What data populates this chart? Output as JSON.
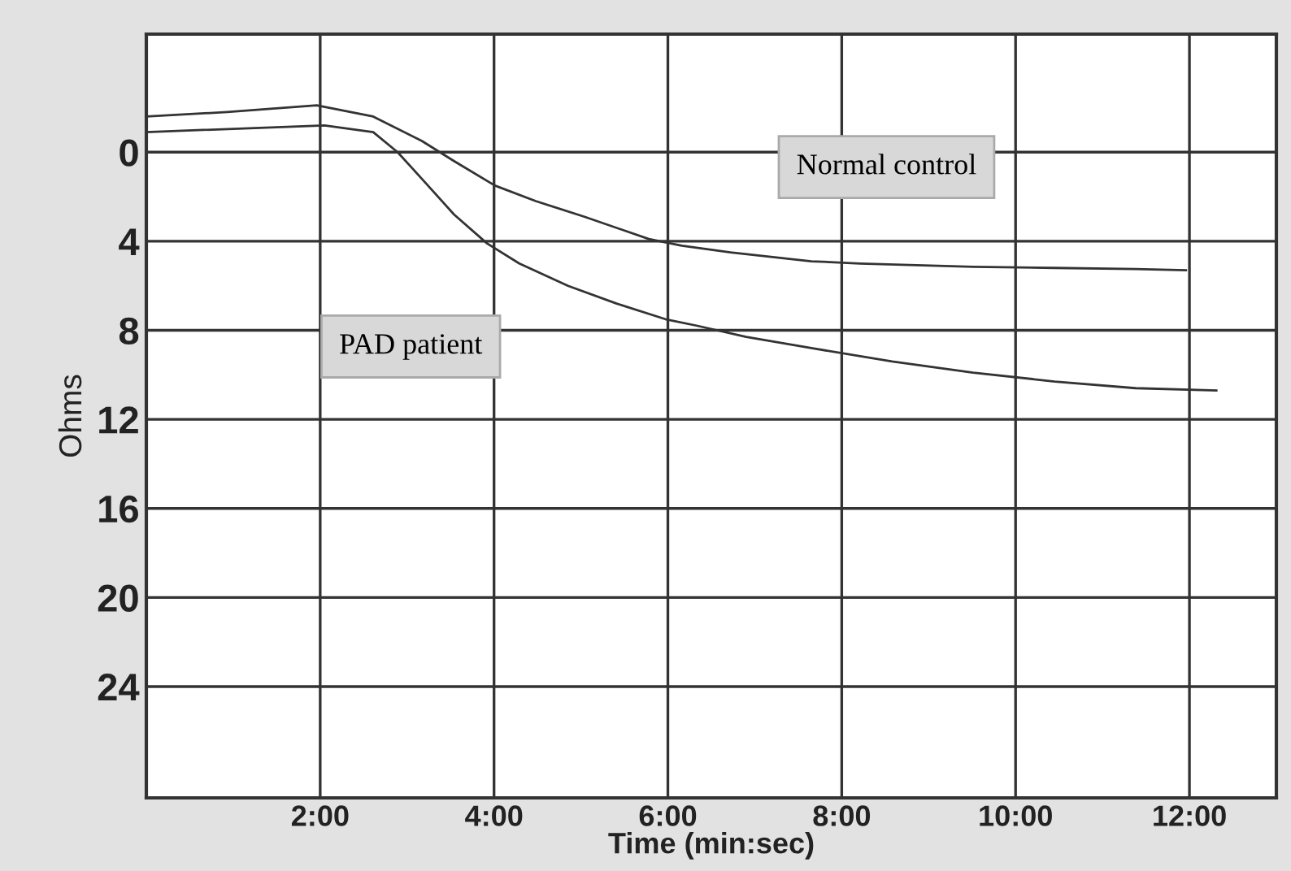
{
  "chart_data": {
    "type": "line",
    "xlabel": "Time (min:sec)",
    "ylabel": "Ohms",
    "xlim": [
      0,
      13
    ],
    "ylim": [
      29,
      -5.3
    ],
    "xticks": [
      {
        "value": 2,
        "label": "2:00"
      },
      {
        "value": 4,
        "label": "4:00"
      },
      {
        "value": 6,
        "label": "6:00"
      },
      {
        "value": 8,
        "label": "8:00"
      },
      {
        "value": 10,
        "label": "10:00"
      },
      {
        "value": 12,
        "label": "12:00"
      }
    ],
    "yticks": [
      0,
      4,
      8,
      12,
      16,
      20,
      24
    ],
    "grid": true,
    "legend": false,
    "series": [
      {
        "color": "#333333",
        "x": [
          0,
          0.93,
          1.96,
          2.61,
          3.17,
          3.54,
          4.01,
          4.48,
          5.04,
          5.78,
          6.16,
          6.72,
          7.65,
          8.21,
          9.51,
          10.45,
          11.38,
          11.96
        ],
        "values": [
          -1.6,
          -1.8,
          -2.1,
          -1.6,
          -0.5,
          0.4,
          1.5,
          2.2,
          2.9,
          3.9,
          4.2,
          4.5,
          4.9,
          5.0,
          5.15,
          5.2,
          5.25,
          5.3
        ]
      },
      {
        "color": "#333333",
        "x": [
          0,
          2.05,
          2.61,
          2.89,
          3.17,
          3.54,
          3.92,
          4.29,
          4.85,
          5.41,
          5.97,
          6.34,
          6.9,
          7.65,
          8.58,
          9.51,
          10.45,
          11.38,
          12.31
        ],
        "values": [
          -0.9,
          -1.2,
          -0.9,
          0,
          1.2,
          2.8,
          4.1,
          5.0,
          6.0,
          6.8,
          7.5,
          7.8,
          8.3,
          8.8,
          9.4,
          9.9,
          10.3,
          10.6,
          10.7
        ]
      }
    ],
    "annotations": [
      "Normal control",
      "PAD patient"
    ]
  }
}
